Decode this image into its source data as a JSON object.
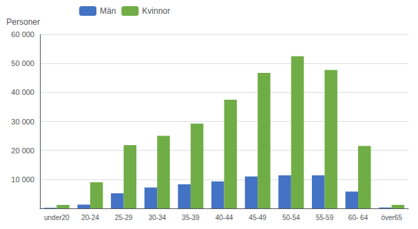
{
  "chart_data": {
    "type": "bar",
    "ylabel": "Personer",
    "categories": [
      "under20",
      "20-24",
      "25-29",
      "30-34",
      "35-39",
      "40-44",
      "45-49",
      "50-54",
      "55-59",
      "60- 64",
      "över65"
    ],
    "series": [
      {
        "name": "Män",
        "color": "#4472c4",
        "values": [
          200,
          1300,
          5200,
          7200,
          8300,
          9300,
          11000,
          11400,
          11400,
          5800,
          300
        ]
      },
      {
        "name": "Kvinnor",
        "color": "#70ad47",
        "values": [
          1200,
          9000,
          21800,
          25000,
          29200,
          37500,
          46700,
          52500,
          47700,
          21500,
          1200
        ]
      }
    ],
    "ylim": [
      0,
      60000
    ],
    "yticks": [
      {
        "value": 0,
        "label": ""
      },
      {
        "value": 10000,
        "label": "10 000"
      },
      {
        "value": 20000,
        "label": "20 000"
      },
      {
        "value": 30000,
        "label": "30 000"
      },
      {
        "value": 40000,
        "label": "40 000"
      },
      {
        "value": 50000,
        "label": "50 000"
      },
      {
        "value": 60000,
        "label": "60 000"
      }
    ],
    "grid": true,
    "legend": "upper left"
  }
}
